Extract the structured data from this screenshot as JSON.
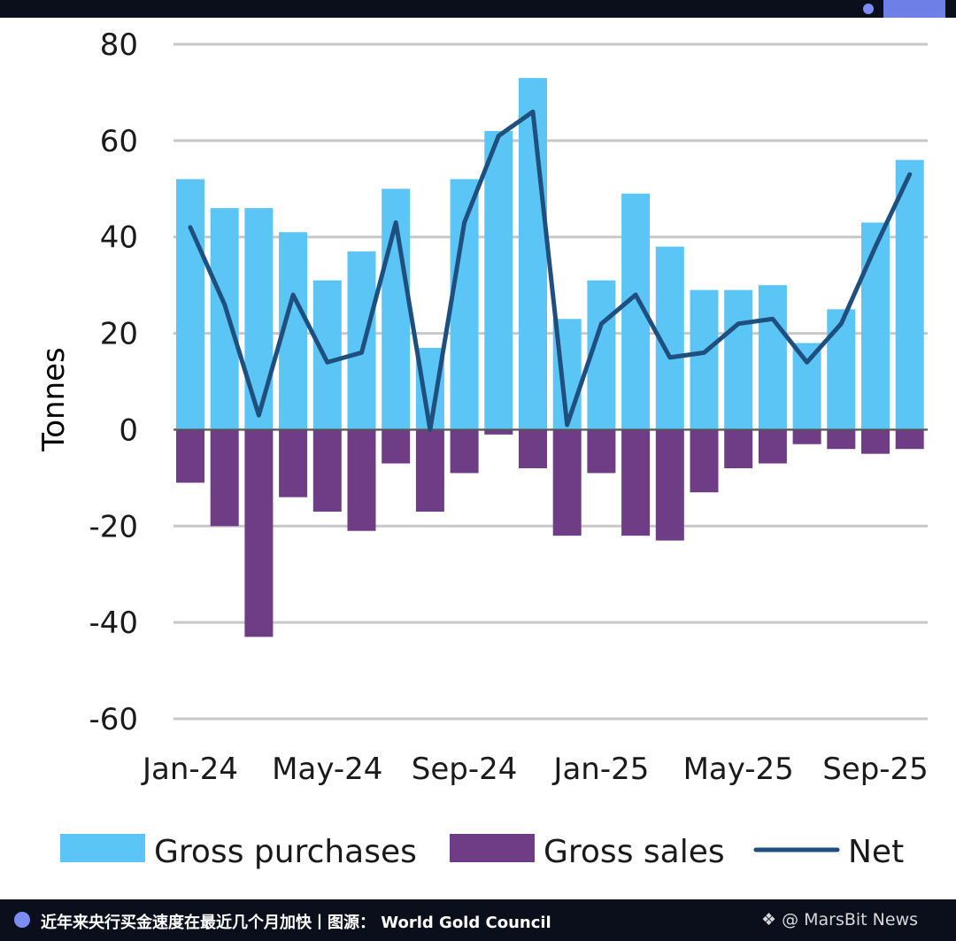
{
  "caption": "近年来央行买金速度在最近几个月加快丨图源：  World Gold Council",
  "watermark": "❖ @ MarsBit News",
  "colors": {
    "purchases": "#5bc6f5",
    "sales": "#6f3d86",
    "net": "#1f4f7e",
    "grid": "#c8c8c8",
    "text": "#1a1a1a"
  },
  "chart_data": {
    "type": "bar",
    "ylabel": "Tonnes",
    "ylim": [
      -60,
      80
    ],
    "yticks": [
      "80",
      "60",
      "40",
      "20",
      "0",
      "-20",
      "-40",
      "-60"
    ],
    "grid": true,
    "legend_position": "bottom",
    "categories": [
      "Jan-24",
      "Feb-24",
      "Mar-24",
      "Apr-24",
      "May-24",
      "Jun-24",
      "Jul-24",
      "Aug-24",
      "Sep-24",
      "Oct-24",
      "Nov-24",
      "Dec-24",
      "Jan-25",
      "Feb-25",
      "Mar-25",
      "Apr-25",
      "May-25",
      "Jun-25",
      "Jul-25",
      "Aug-25",
      "Sep-25",
      "Oct-25"
    ],
    "xtick_labels": [
      "Jan-24",
      "May-24",
      "Sep-24",
      "Jan-25",
      "May-25",
      "Sep-25"
    ],
    "series": [
      {
        "name": "Gross purchases",
        "type": "bar",
        "values": [
          52,
          46,
          46,
          41,
          31,
          37,
          50,
          17,
          52,
          62,
          73,
          23,
          31,
          49,
          38,
          29,
          29,
          30,
          18,
          25,
          43,
          56
        ]
      },
      {
        "name": "Gross sales",
        "type": "bar",
        "values": [
          -11,
          -20,
          -43,
          -14,
          -17,
          -21,
          -7,
          -17,
          -9,
          -1,
          -8,
          -22,
          -9,
          -22,
          -23,
          -13,
          -8,
          -7,
          -3,
          -4,
          -5,
          -4
        ]
      },
      {
        "name": "Net",
        "type": "line",
        "values": [
          42,
          26,
          3,
          28,
          14,
          16,
          43,
          0,
          43,
          61,
          66,
          1,
          22,
          28,
          15,
          16,
          22,
          23,
          14,
          22,
          38,
          53
        ]
      }
    ]
  }
}
